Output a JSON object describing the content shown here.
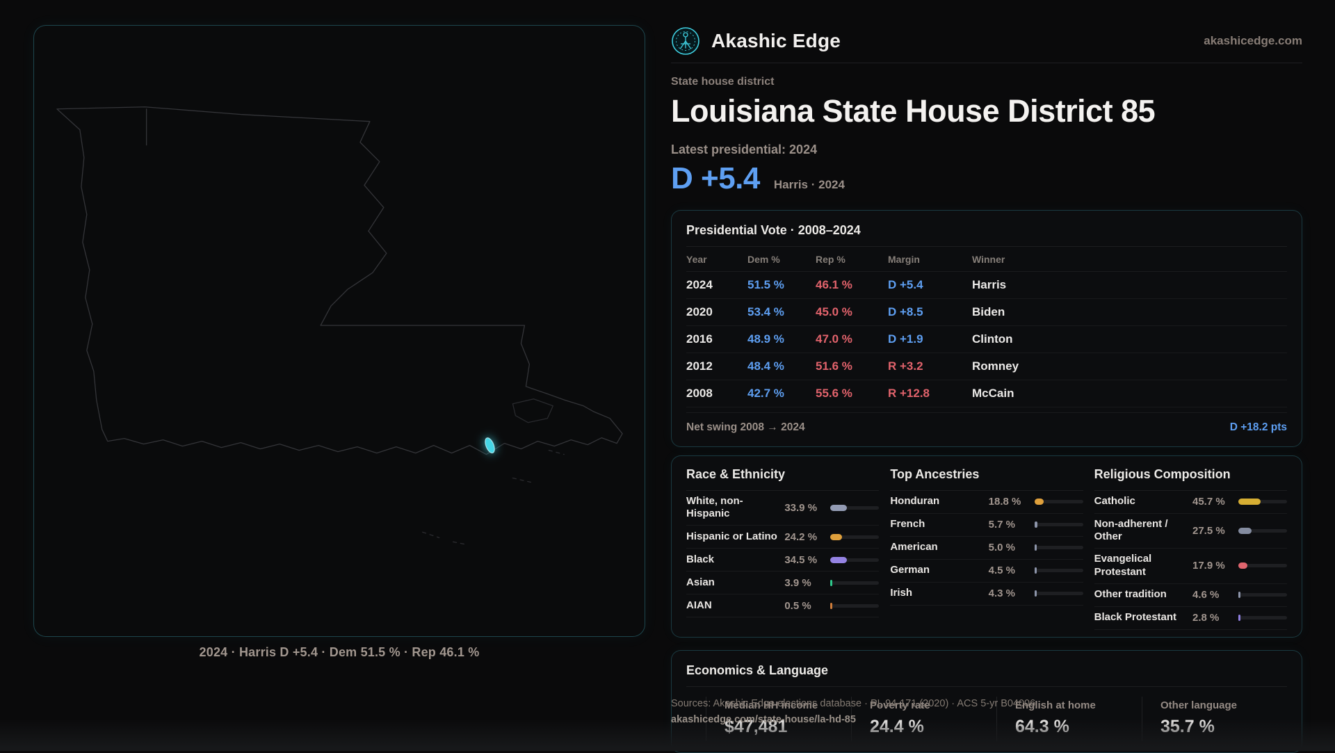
{
  "brand": {
    "name": "Akashic Edge",
    "domain": "akashicedge.com"
  },
  "header": {
    "kicker": "State house district",
    "title": "Louisiana State House District 85",
    "latest_label": "Latest presidential: 2024",
    "margin": "D +5.4",
    "margin_context": "Harris · 2024"
  },
  "map": {
    "caption": "2024 · Harris D +5.4 · Dem 51.5 % · Rep 46.1 %"
  },
  "vote_table": {
    "title": "Presidential Vote · 2008–2024",
    "headers": [
      "Year",
      "Dem %",
      "Rep %",
      "Margin",
      "Winner"
    ],
    "rows": [
      {
        "year": "2024",
        "dem": "51.5 %",
        "rep": "46.1 %",
        "margin": "D +5.4",
        "party": "D",
        "winner": "Harris"
      },
      {
        "year": "2020",
        "dem": "53.4 %",
        "rep": "45.0 %",
        "margin": "D +8.5",
        "party": "D",
        "winner": "Biden"
      },
      {
        "year": "2016",
        "dem": "48.9 %",
        "rep": "47.0 %",
        "margin": "D +1.9",
        "party": "D",
        "winner": "Clinton"
      },
      {
        "year": "2012",
        "dem": "48.4 %",
        "rep": "51.6 %",
        "margin": "R +3.2",
        "party": "R",
        "winner": "Romney"
      },
      {
        "year": "2008",
        "dem": "42.7 %",
        "rep": "55.6 %",
        "margin": "R +12.8",
        "party": "R",
        "winner": "McCain"
      }
    ],
    "net_swing_label": "Net swing 2008 → 2024",
    "net_swing_value": "D +18.2 pts"
  },
  "demographics": {
    "panels": [
      {
        "title": "Race & Ethnicity",
        "rows": [
          {
            "label": "White, non-Hispanic",
            "value": "33.9 %",
            "pct": 33.9,
            "color": "#939bb3"
          },
          {
            "label": "Hispanic or Latino",
            "value": "24.2 %",
            "pct": 24.2,
            "color": "#dfa03c"
          },
          {
            "label": "Black",
            "value": "34.5 %",
            "pct": 34.5,
            "color": "#9583e3"
          },
          {
            "label": "Asian",
            "value": "3.9 %",
            "pct": 3.9,
            "color": "#2ec98b"
          },
          {
            "label": "AIAN",
            "value": "0.5 %",
            "pct": 0.5,
            "color": "#cf7d3a"
          }
        ]
      },
      {
        "title": "Top Ancestries",
        "rows": [
          {
            "label": "Honduran",
            "value": "18.8 %",
            "pct": 18.8,
            "color": "#dfa03c"
          },
          {
            "label": "French",
            "value": "5.7 %",
            "pct": 5.7,
            "color": "#8d95aa"
          },
          {
            "label": "American",
            "value": "5.0 %",
            "pct": 5.0,
            "color": "#8d95aa"
          },
          {
            "label": "German",
            "value": "4.5 %",
            "pct": 4.5,
            "color": "#8d95aa"
          },
          {
            "label": "Irish",
            "value": "4.3 %",
            "pct": 4.3,
            "color": "#8d95aa"
          }
        ]
      },
      {
        "title": "Religious Composition",
        "rows": [
          {
            "label": "Catholic",
            "value": "45.7 %",
            "pct": 45.7,
            "color": "#d6ae33"
          },
          {
            "label": "Non-adherent / Other",
            "value": "27.5 %",
            "pct": 27.5,
            "color": "#848ca0"
          },
          {
            "label": "Evangelical Protestant",
            "value": "17.9 %",
            "pct": 17.9,
            "color": "#e0656e"
          },
          {
            "label": "Other tradition",
            "value": "4.6 %",
            "pct": 4.6,
            "color": "#8d95aa"
          },
          {
            "label": "Black Protestant",
            "value": "2.8 %",
            "pct": 2.8,
            "color": "#8f7fe0"
          }
        ]
      }
    ]
  },
  "economics": {
    "title": "Economics & Language",
    "stats": [
      {
        "label": "Median HH income",
        "value": "$47,481"
      },
      {
        "label": "Poverty rate",
        "value": "24.4 %"
      },
      {
        "label": "English at home",
        "value": "64.3 %"
      },
      {
        "label": "Other language",
        "value": "35.7 %"
      }
    ]
  },
  "footer": {
    "line1": "Sources: Akashic Edge elections database · PL 94-171 (2020) · ACS 5-yr B04006",
    "line2": "akashicedge.com/state-house/la-hd-85"
  },
  "colors": {
    "dem": "#5e9ff2",
    "rep": "#e2636c",
    "accent": "#3fcfe0",
    "highlight": "#45d6e6"
  }
}
